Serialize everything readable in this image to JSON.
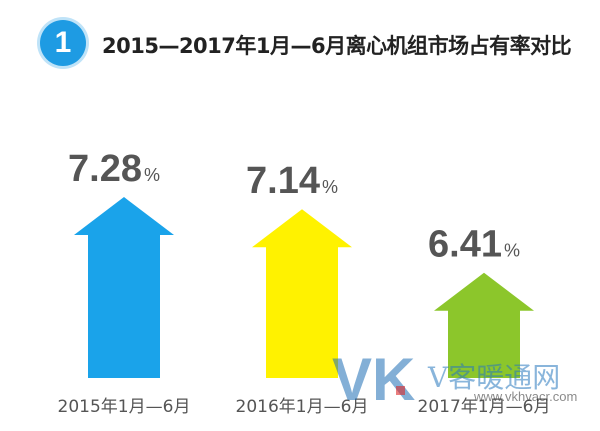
{
  "header": {
    "badge_number": "1",
    "title": "2015—2017年1月—6月离心机组市场占有率对比"
  },
  "chart_data": {
    "type": "bar",
    "title": "2015—2017年1月—6月离心机组市场占有率对比",
    "categories": [
      "2015年1月—6月",
      "2016年1月—6月",
      "2017年1月—6月"
    ],
    "values": [
      7.28,
      7.14,
      6.41
    ],
    "value_labels": [
      "7.28",
      "7.14",
      "6.41"
    ],
    "unit": "%",
    "colors": [
      "#1aa3ea",
      "#fff200",
      "#8cc62b"
    ],
    "xlabel": "",
    "ylabel": "",
    "grid": false,
    "legend": "none"
  },
  "watermark": {
    "logo": "VK",
    "text": "V客暖通网",
    "url": "www.vkhvacr.com"
  }
}
